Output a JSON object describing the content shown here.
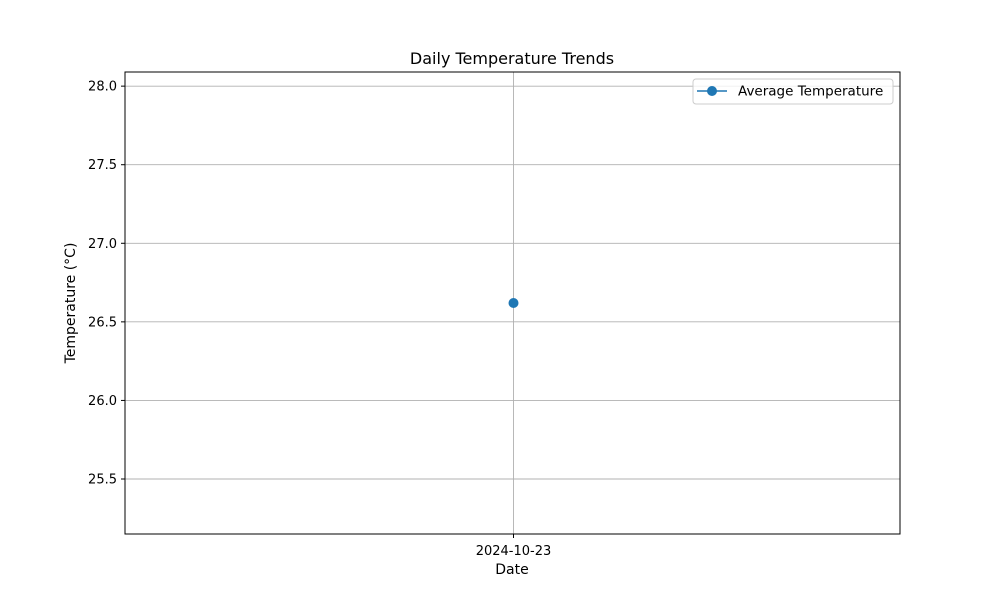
{
  "chart_data": {
    "type": "line",
    "title": "Daily Temperature Trends",
    "xlabel": "Date",
    "ylabel": "Temperature (°C)",
    "categories": [
      "2024-10-23"
    ],
    "series": [
      {
        "name": "Average Temperature",
        "values": [
          26.62
        ],
        "color": "#1f77b4",
        "marker": "circle"
      }
    ],
    "ylim": [
      25.15,
      28.09
    ],
    "yticks": [
      "25.5",
      "26.0",
      "26.5",
      "27.0",
      "27.5",
      "28.0"
    ],
    "grid": true,
    "legend_position": "top-right"
  }
}
